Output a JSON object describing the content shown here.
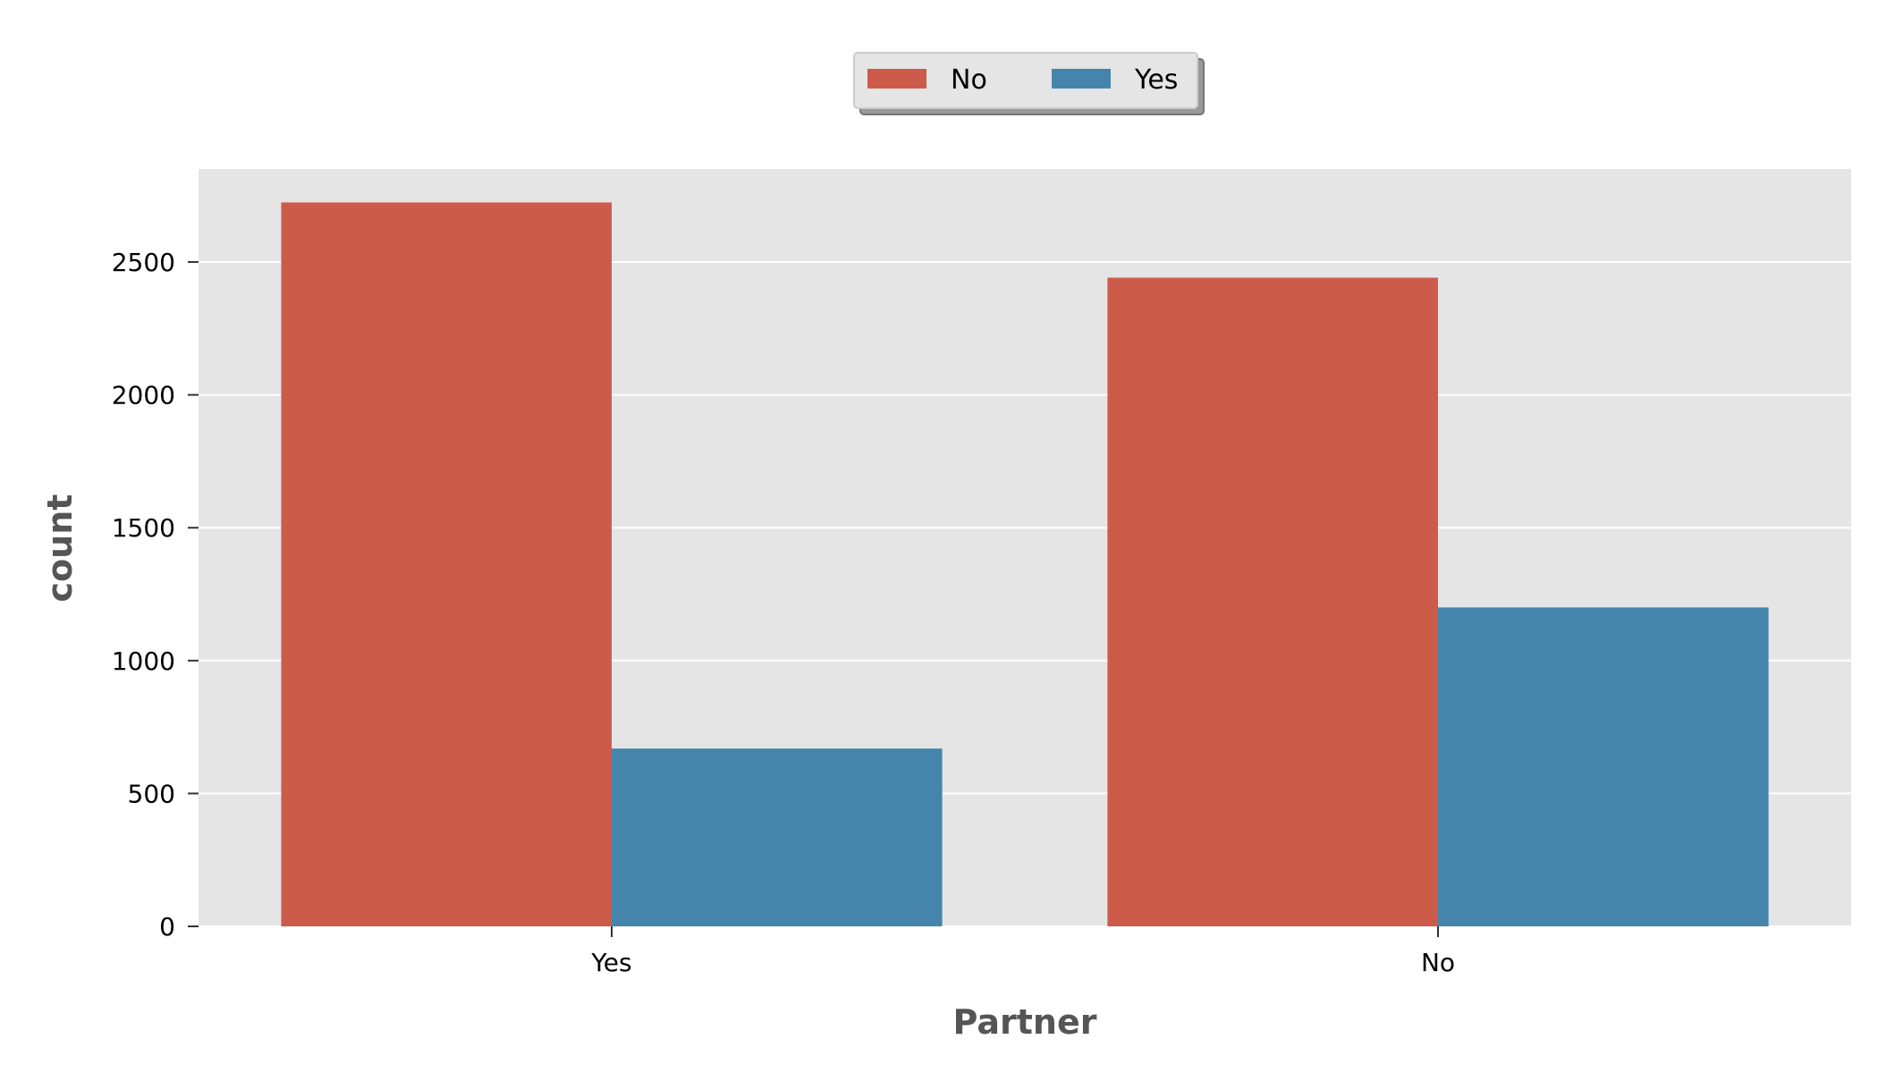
{
  "chart_data": {
    "type": "bar",
    "xlabel": "Partner",
    "ylabel": "count",
    "categories": [
      "Yes",
      "No"
    ],
    "series": [
      {
        "name": "No",
        "color": "#cd5b4a",
        "values": [
          2724,
          2441
        ]
      },
      {
        "name": "Yes",
        "color": "#4585ab",
        "values": [
          669,
          1200
        ]
      }
    ],
    "ylim": [
      0,
      2850
    ],
    "yticks": [
      0,
      500,
      1000,
      1500,
      2000,
      2500
    ],
    "grid": true,
    "legend_position": "top-center",
    "plot_background": "#e5e5e5"
  }
}
